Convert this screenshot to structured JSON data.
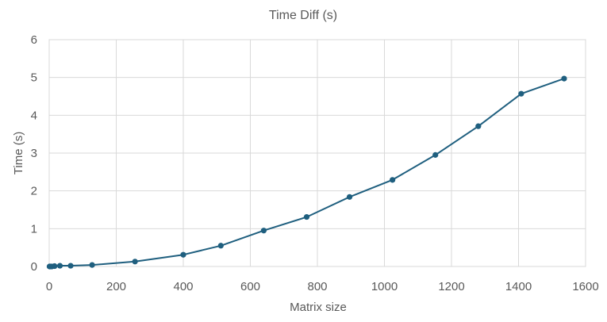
{
  "chart_data": {
    "type": "line",
    "title": "Time Diff (s)",
    "xlabel": "Matrix size",
    "ylabel": "Time (s)",
    "xlim": [
      0,
      1600
    ],
    "ylim": [
      0,
      6
    ],
    "x_ticks": [
      0,
      200,
      400,
      600,
      800,
      1000,
      1200,
      1400,
      1600
    ],
    "y_ticks": [
      0,
      1,
      2,
      3,
      4,
      5,
      6
    ],
    "grid": true,
    "legend": "none",
    "series": [
      {
        "color": "#1f5f7f",
        "x": [
          1,
          2,
          4,
          8,
          16,
          32,
          64,
          128,
          256,
          400,
          512,
          640,
          768,
          896,
          1024,
          1152,
          1280,
          1408,
          1536
        ],
        "y": [
          0.0,
          0.0,
          0.0,
          0.0,
          0.01,
          0.02,
          0.02,
          0.04,
          0.13,
          0.31,
          0.55,
          0.95,
          1.31,
          1.84,
          2.29,
          2.95,
          3.71,
          4.57,
          4.97
        ]
      }
    ]
  }
}
